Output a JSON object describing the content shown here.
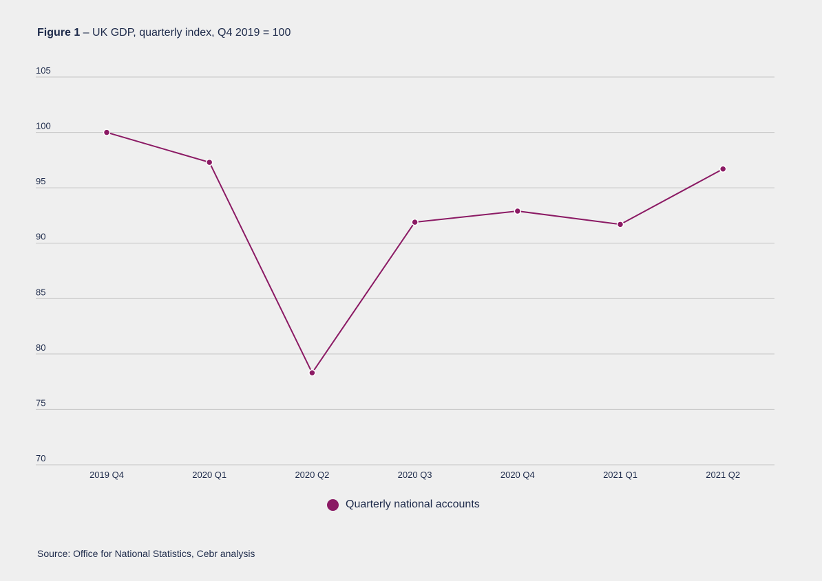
{
  "title": {
    "label": "Figure 1",
    "text": " – UK GDP, quarterly index, Q4 2019 = 100"
  },
  "source": "Source: Office for National Statistics, Cebr analysis",
  "colors": {
    "series": "#8b1a64",
    "grid": "#c4c4c4",
    "text": "#1d2a4a",
    "background": "#efefef"
  },
  "chart_data": {
    "type": "line",
    "categories": [
      "2019 Q4",
      "2020 Q1",
      "2020 Q2",
      "2020 Q3",
      "2020 Q4",
      "2021 Q1",
      "2021 Q2"
    ],
    "series": [
      {
        "name": "Quarterly national accounts",
        "values": [
          100.0,
          97.3,
          78.3,
          91.9,
          92.9,
          91.7,
          96.7
        ]
      }
    ],
    "ylim": [
      70,
      105
    ],
    "yticks": [
      70,
      75,
      80,
      85,
      90,
      95,
      100,
      105
    ],
    "grid": true,
    "legend": "bottom-center",
    "markers": true
  }
}
